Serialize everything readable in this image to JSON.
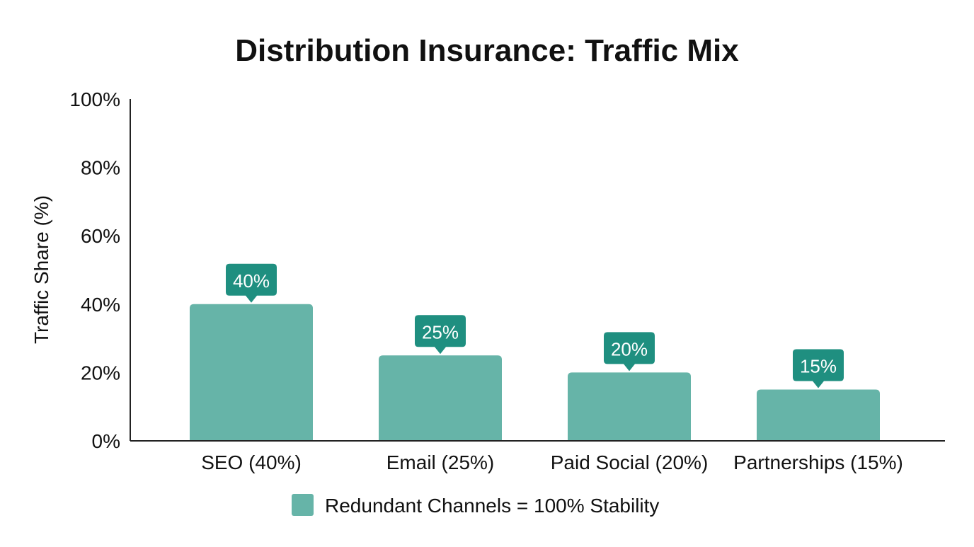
{
  "chart_data": {
    "type": "bar",
    "title": "Distribution Insurance: Traffic Mix",
    "xlabel": "",
    "ylabel": "Traffic Share (%)",
    "ylim": [
      0,
      100
    ],
    "yticks": [
      0,
      20,
      40,
      60,
      80,
      100
    ],
    "ytick_labels": [
      "0%",
      "20%",
      "40%",
      "60%",
      "80%",
      "100%"
    ],
    "categories": [
      "SEO (40%)",
      "Email (25%)",
      "Paid Social (20%)",
      "Partnerships (15%)"
    ],
    "values": [
      40,
      25,
      20,
      15
    ],
    "data_labels": [
      "40%",
      "25%",
      "20%",
      "15%"
    ],
    "grid": false,
    "legend": {
      "placement": "bottom",
      "entries": [
        "Redundant Channels = 100% Stability"
      ]
    },
    "colors": {
      "bar": "#66b4a8",
      "data_label_bg": "#1f8f80",
      "axis": "#222222"
    }
  }
}
